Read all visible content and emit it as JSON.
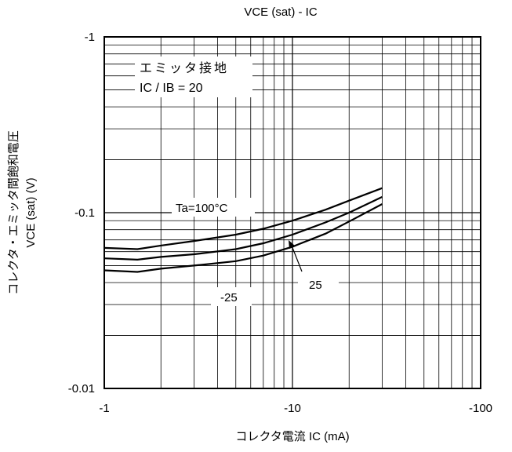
{
  "chart_data": {
    "type": "line",
    "title": "VCE (sat) - IC",
    "xlabel": "コレクタ電流  IC (mA)",
    "ylabel_line1": "コレクタ・エミッタ間飽和電圧",
    "ylabel_line2": "VCE (sat) (V)",
    "x_scale": "log",
    "y_scale": "log",
    "xlim": [
      -1,
      -100
    ],
    "ylim": [
      -0.01,
      -1
    ],
    "x_ticks": [
      {
        "value": -1,
        "label": "-1"
      },
      {
        "value": -10,
        "label": "-10"
      },
      {
        "value": -100,
        "label": "-100"
      }
    ],
    "y_ticks": [
      {
        "value": -1,
        "label": "-1"
      },
      {
        "value": -0.1,
        "label": "-0.1"
      },
      {
        "value": -0.01,
        "label": "-0.01"
      }
    ],
    "grid": true,
    "conditions": [
      "エミッタ接地",
      "IC / IB = 20"
    ],
    "series": [
      {
        "name": "Ta=100°C",
        "x": [
          -1,
          -1.5,
          -2,
          -3,
          -5,
          -7,
          -10,
          -15,
          -20,
          -30
        ],
        "y": [
          -0.063,
          -0.062,
          -0.065,
          -0.069,
          -0.075,
          -0.081,
          -0.09,
          -0.104,
          -0.117,
          -0.138
        ]
      },
      {
        "name": "25",
        "x": [
          -1,
          -1.5,
          -2,
          -3,
          -5,
          -7,
          -10,
          -15,
          -20,
          -30
        ],
        "y": [
          -0.055,
          -0.054,
          -0.056,
          -0.058,
          -0.062,
          -0.067,
          -0.075,
          -0.088,
          -0.1,
          -0.123
        ]
      },
      {
        "name": "-25",
        "x": [
          -1,
          -1.5,
          -2,
          -3,
          -5,
          -7,
          -10,
          -15,
          -20,
          -30
        ],
        "y": [
          -0.047,
          -0.046,
          -0.048,
          -0.05,
          -0.053,
          -0.057,
          -0.064,
          -0.076,
          -0.089,
          -0.112
        ]
      }
    ],
    "annotations": [
      {
        "text": "Ta=100°C",
        "series": 0
      },
      {
        "text": "25",
        "series": 1
      },
      {
        "text": "-25",
        "series": 2
      }
    ]
  }
}
